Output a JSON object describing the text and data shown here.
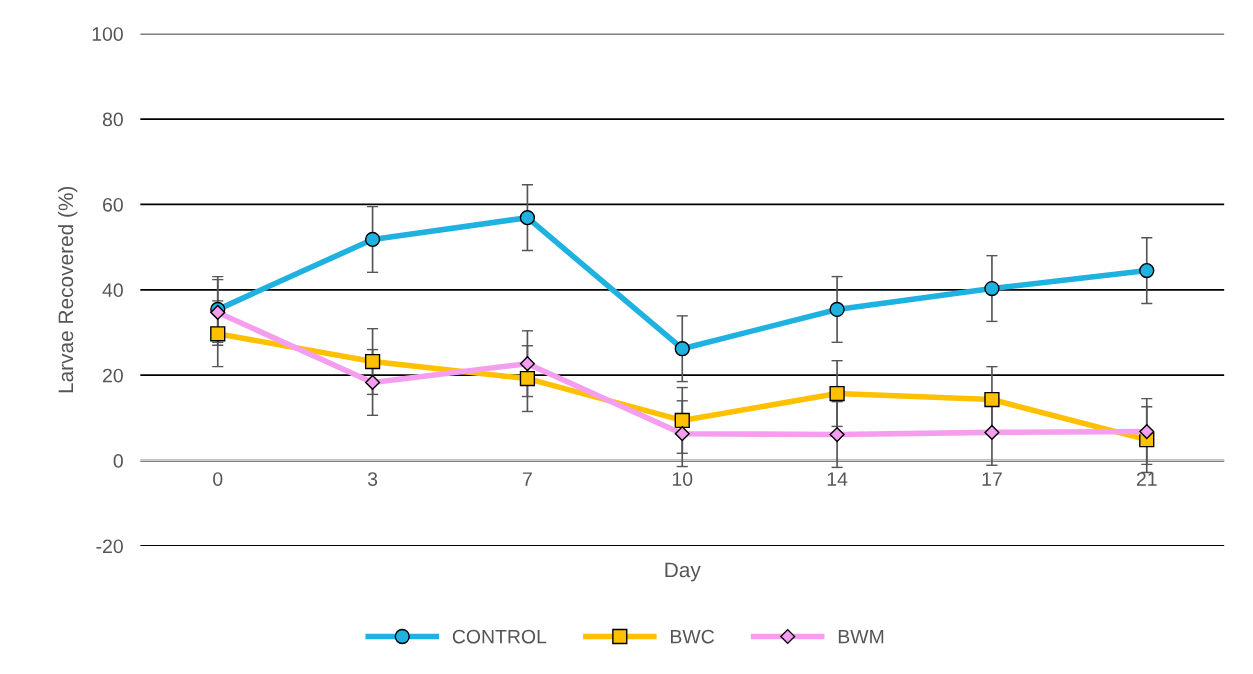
{
  "chart_data": {
    "type": "line",
    "xlabel": "Day",
    "ylabel": "Larvae Recovered (%)",
    "categories": [
      "0",
      "3",
      "7",
      "10",
      "14",
      "17",
      "21"
    ],
    "ylim": [
      -20,
      100
    ],
    "yticks": [
      -20,
      0,
      20,
      40,
      60,
      80,
      100
    ],
    "grid": "y",
    "legend": "bottom",
    "line_style": "solid",
    "series": [
      {
        "name": "CONTROL",
        "color": "#1fb1e0",
        "marker": "circle",
        "values": [
          35.4,
          51.8,
          56.9,
          26.2,
          35.4,
          40.3,
          44.5
        ],
        "errors": [
          7.7,
          7.7,
          7.7,
          7.7,
          7.7,
          7.7,
          7.7
        ]
      },
      {
        "name": "BWC",
        "color": "#ffc000",
        "marker": "square",
        "values": [
          29.7,
          23.2,
          19.2,
          9.4,
          15.7,
          14.3,
          4.9
        ],
        "errors": [
          7.7,
          7.7,
          7.7,
          7.7,
          7.7,
          7.7,
          7.7
        ]
      },
      {
        "name": "BWM",
        "color": "#f59ef0",
        "marker": "diamond",
        "values": [
          34.7,
          18.3,
          22.7,
          6.3,
          6.1,
          6.6,
          6.8
        ],
        "errors": [
          7.7,
          7.7,
          7.7,
          7.7,
          7.7,
          7.7,
          7.7
        ]
      }
    ]
  }
}
